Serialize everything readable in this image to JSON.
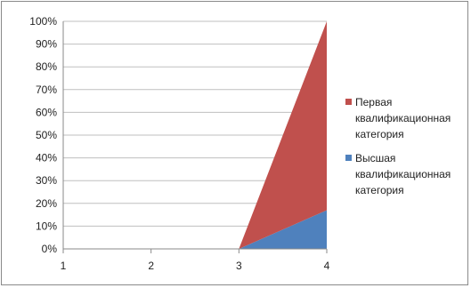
{
  "chart_data": {
    "type": "area",
    "stacking": "percent",
    "title": "",
    "xlabel": "",
    "ylabel": "",
    "categories": [
      "1",
      "2",
      "3",
      "4"
    ],
    "ylim": [
      0,
      100
    ],
    "yticks": [
      "0%",
      "10%",
      "20%",
      "30%",
      "40%",
      "50%",
      "60%",
      "70%",
      "80%",
      "90%",
      "100%"
    ],
    "grid": true,
    "legend_position": "right",
    "series": [
      {
        "name": "Высшая квалификационная категория",
        "values": [
          0,
          0,
          0,
          17
        ],
        "color": "#4f81bd"
      },
      {
        "name": "Первая квалификационная категория",
        "values": [
          0,
          0,
          0,
          83
        ],
        "color": "#c0504d"
      }
    ],
    "legend": [
      {
        "lines": [
          "Первая",
          "квалификационная",
          "категория"
        ],
        "color": "#c0504d"
      },
      {
        "lines": [
          "Высшая",
          "квалификационная",
          "категория"
        ],
        "color": "#4f81bd"
      }
    ]
  }
}
